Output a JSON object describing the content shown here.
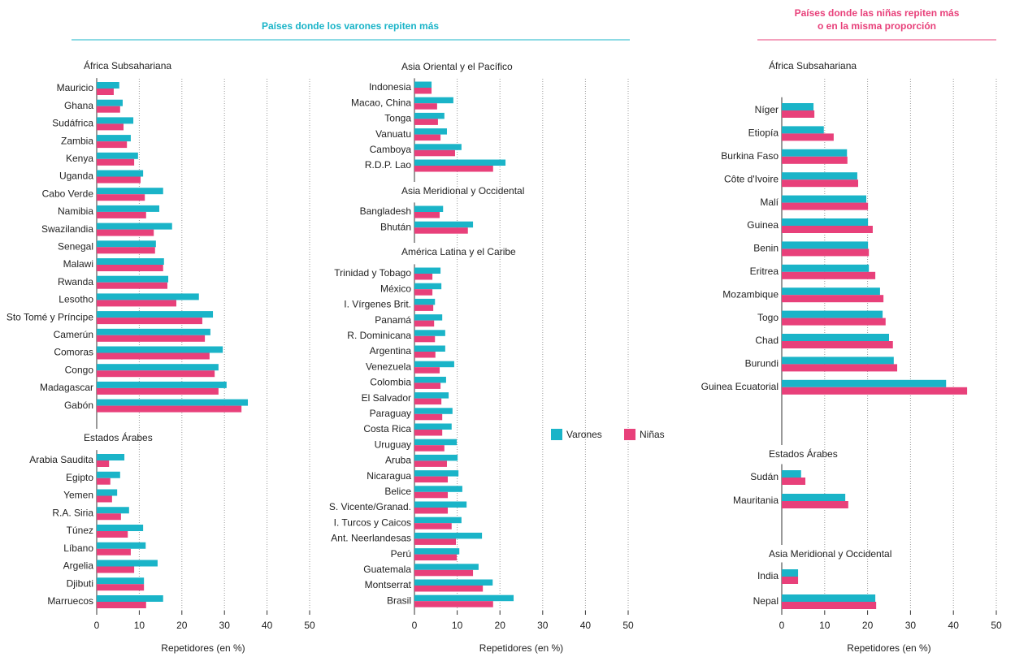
{
  "headers": [
    "Países donde los varones repiten más",
    [
      "Países donde las niñas repiten más",
      "o en la misma proporción"
    ]
  ],
  "legend": [
    {
      "name": "Varones",
      "color": "#1ab4c8"
    },
    {
      "name": "Niñas",
      "color": "#e8407a"
    }
  ],
  "chart_data": [
    {
      "type": "bar",
      "orientation": "horizontal",
      "xlabel": "Repetidores (en %)",
      "xlim": [
        0,
        50
      ],
      "xticks": [
        0,
        10,
        20,
        30,
        40,
        50
      ],
      "grid": true,
      "groups": [
        {
          "name": "África Subsahariana",
          "categories": [
            "Mauricio",
            "Ghana",
            "Sudáfrica",
            "Zambia",
            "Kenya",
            "Uganda",
            "Cabo Verde",
            "Namibia",
            "Swazilandia",
            "Senegal",
            "Malawi",
            "Rwanda",
            "Lesotho",
            "Sto Tomé y Príncipe",
            "Camerún",
            "Comoras",
            "Congo",
            "Madagascar",
            "Gabón"
          ],
          "series": [
            {
              "values": [
                5.3,
                6.1,
                8.6,
                8.0,
                9.7,
                10.9,
                15.6,
                14.7,
                17.7,
                13.9,
                15.8,
                16.8,
                24.0,
                27.3,
                26.7,
                29.6,
                28.6,
                30.5,
                35.5
              ]
            },
            {
              "values": [
                4.0,
                5.5,
                6.3,
                7.1,
                8.8,
                10.3,
                11.3,
                11.6,
                13.4,
                13.7,
                15.6,
                16.6,
                18.7,
                24.8,
                25.4,
                26.5,
                27.7,
                28.6,
                34.0
              ]
            }
          ]
        },
        {
          "name": "Estados Árabes",
          "categories": [
            "Arabia Saudita",
            "Egipto",
            "Yemen",
            "R.A. Siria",
            "Túnez",
            "Líbano",
            "Argelia",
            "Djibuti",
            "Marruecos"
          ],
          "series": [
            {
              "values": [
                6.5,
                5.5,
                4.8,
                7.6,
                10.9,
                11.5,
                14.3,
                11.1,
                15.6
              ]
            },
            {
              "values": [
                2.9,
                3.2,
                3.6,
                5.7,
                7.3,
                8.0,
                8.8,
                11.1,
                11.6
              ]
            }
          ]
        }
      ]
    },
    {
      "type": "bar",
      "orientation": "horizontal",
      "xlabel": "Repetidores (en %)",
      "xlim": [
        0,
        50
      ],
      "xticks": [
        0,
        10,
        20,
        30,
        40,
        50
      ],
      "grid": true,
      "groups": [
        {
          "name": "Asia Oriental y el Pacífico",
          "categories": [
            "Indonesia",
            "Macao, China",
            "Tonga",
            "Vanuatu",
            "Camboya",
            "R.D.P. Lao"
          ],
          "series": [
            {
              "values": [
                4.0,
                9.1,
                7.0,
                7.6,
                11.0,
                21.3
              ]
            },
            {
              "values": [
                4.0,
                5.3,
                5.5,
                6.1,
                9.5,
                18.4
              ]
            }
          ]
        },
        {
          "name": "Asia Meridional y Occidental",
          "categories": [
            "Bangladesh",
            "Bhután"
          ],
          "series": [
            {
              "values": [
                6.7,
                13.7
              ]
            },
            {
              "values": [
                5.9,
                12.5
              ]
            }
          ]
        },
        {
          "name": "América Latina y el Caribe",
          "categories": [
            "Trinidad y Tobago",
            "México",
            "I. Vírgenes Brit.",
            "Panamá",
            "R. Dominicana",
            "Argentina",
            "Venezuela",
            "Colombia",
            "El Salvador",
            "Paraguay",
            "Costa Rica",
            "Uruguay",
            "Aruba",
            "Nicaragua",
            "Belice",
            "S. Vicente/Granad.",
            "I. Turcos y Caicos",
            "Ant. Neerlandesas",
            "Perú",
            "Guatemala",
            "Montserrat",
            "Brasil"
          ],
          "series": [
            {
              "values": [
                6.1,
                6.3,
                4.8,
                6.5,
                7.2,
                7.2,
                9.3,
                7.4,
                8.0,
                8.9,
                8.7,
                9.9,
                10.1,
                10.3,
                11.2,
                12.2,
                11.0,
                15.8,
                10.5,
                15.0,
                18.3,
                23.2
              ]
            },
            {
              "values": [
                4.2,
                4.2,
                4.4,
                4.6,
                4.8,
                4.9,
                5.9,
                6.1,
                6.3,
                6.5,
                6.5,
                7.0,
                7.6,
                7.8,
                7.8,
                7.8,
                8.7,
                9.7,
                9.9,
                13.7,
                16.0,
                18.4
              ]
            }
          ]
        }
      ]
    },
    {
      "type": "bar",
      "orientation": "horizontal",
      "xlabel": "Repetidores (en %)",
      "xlim": [
        0,
        50
      ],
      "xticks": [
        0,
        10,
        20,
        30,
        40,
        50
      ],
      "grid": true,
      "groups": [
        {
          "name": "África Subsahariana",
          "categories": [
            "Níger",
            "Etiopía",
            "Burkina Faso",
            "Côte d'Ivoire",
            "Malí",
            "Guinea",
            "Benin",
            "Eritrea",
            "Mozambique",
            "Togo",
            "Chad",
            "Burundi",
            "Guinea Ecuatorial"
          ],
          "series": [
            {
              "values": [
                7.4,
                9.8,
                15.2,
                17.6,
                19.7,
                20.1,
                20.1,
                20.3,
                22.9,
                23.5,
                25.0,
                26.1,
                38.3
              ]
            },
            {
              "values": [
                7.6,
                12.1,
                15.3,
                17.8,
                20.1,
                21.2,
                20.3,
                21.8,
                23.7,
                24.2,
                25.9,
                26.9,
                43.2
              ]
            }
          ]
        },
        {
          "name": "Estados Árabes",
          "categories": [
            "Sudán",
            "Mauritania"
          ],
          "series": [
            {
              "values": [
                4.5,
                14.8
              ]
            },
            {
              "values": [
                5.5,
                15.5
              ]
            }
          ]
        },
        {
          "name": "Asia Meridional y Occidental",
          "categories": [
            "India",
            "Nepal"
          ],
          "series": [
            {
              "values": [
                3.8,
                21.8
              ]
            },
            {
              "values": [
                3.8,
                22.0
              ]
            }
          ]
        }
      ]
    }
  ]
}
